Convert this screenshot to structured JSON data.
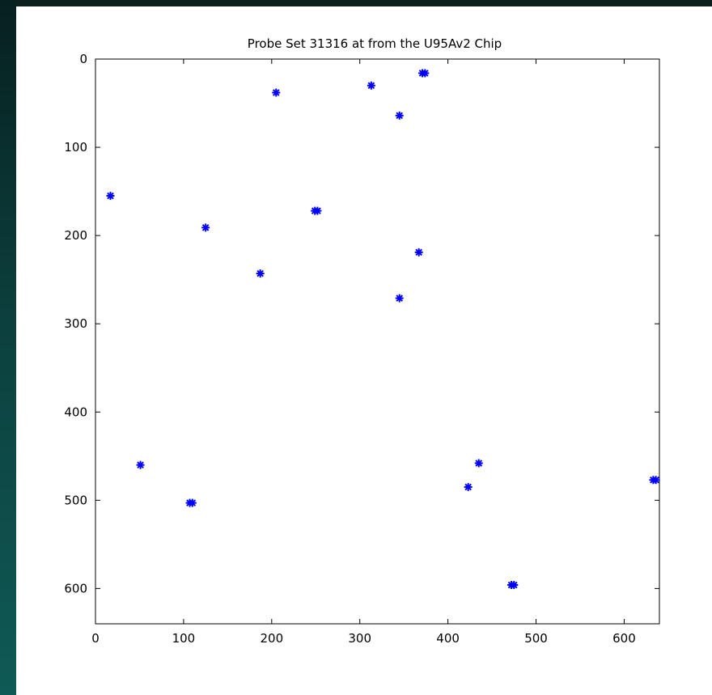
{
  "chart_data": {
    "type": "scatter",
    "title": "Probe Set 31316 at from the U95Av2 Chip",
    "xlabel": "",
    "ylabel": "",
    "xlim": [
      0,
      640
    ],
    "ylim": [
      0,
      640
    ],
    "y_reversed": true,
    "grid": false,
    "marker": "asterisk",
    "marker_color": "#0000ff",
    "x_ticks": [
      0,
      100,
      200,
      300,
      400,
      500,
      600
    ],
    "y_ticks": [
      0,
      100,
      200,
      300,
      400,
      500,
      600
    ],
    "series": [
      {
        "points": [
          [
            17,
            155
          ],
          [
            51,
            460
          ],
          [
            107,
            503
          ],
          [
            110,
            503
          ],
          [
            125,
            191
          ],
          [
            187,
            243
          ],
          [
            205,
            38
          ],
          [
            249,
            172
          ],
          [
            252,
            172
          ],
          [
            313,
            30
          ],
          [
            345,
            64
          ],
          [
            345,
            271
          ],
          [
            367,
            219
          ],
          [
            371,
            16
          ],
          [
            374,
            16
          ],
          [
            423,
            485
          ],
          [
            435,
            458
          ],
          [
            472,
            596
          ],
          [
            475,
            596
          ],
          [
            633,
            477
          ],
          [
            636,
            477
          ]
        ]
      }
    ]
  }
}
